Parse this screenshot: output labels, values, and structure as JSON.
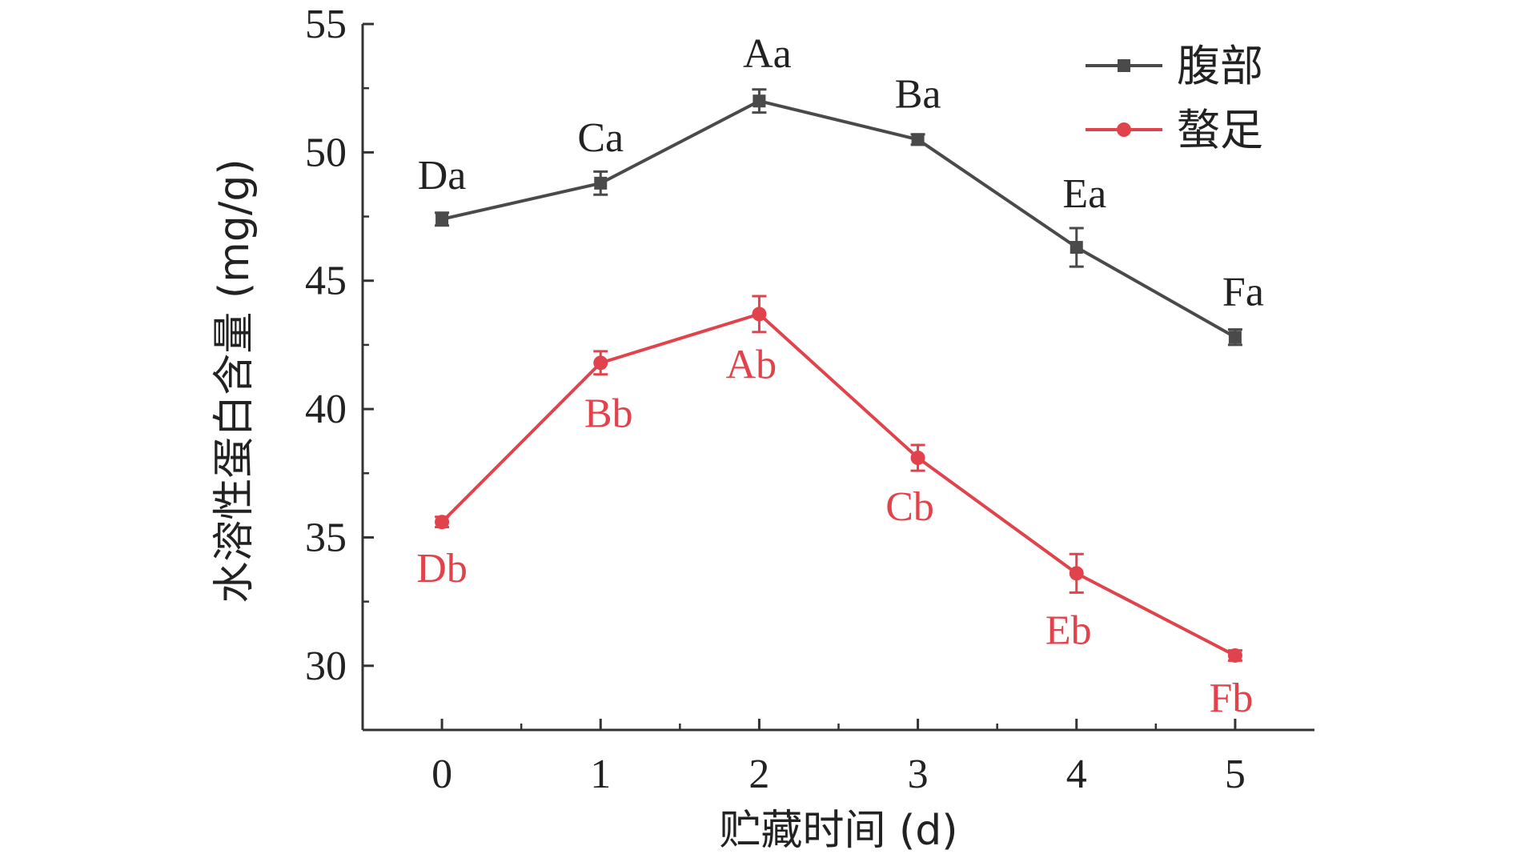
{
  "chart_data": {
    "type": "line",
    "xlabel": "贮藏时间 (d)",
    "ylabel": "水溶性蛋白含量 (mg/g)",
    "x": [
      0,
      1,
      2,
      3,
      4,
      5
    ],
    "xticks": [
      "0",
      "1",
      "2",
      "3",
      "4",
      "5"
    ],
    "ylim": [
      27.5,
      55
    ],
    "yticks": [
      "30",
      "35",
      "40",
      "45",
      "50",
      "55"
    ],
    "xlim": [
      -0.5,
      5.5
    ],
    "grid": false,
    "legend": "top-right",
    "series": [
      {
        "name": "腹部",
        "color": "#4a4a4a",
        "marker": "square",
        "values": [
          47.4,
          48.8,
          52.0,
          50.5,
          46.3,
          42.8
        ],
        "errors": [
          0.25,
          0.45,
          0.45,
          0.2,
          0.75,
          0.3
        ],
        "labels": [
          "Da",
          "Ca",
          "Aa",
          "Ba",
          "Ea",
          "Fa"
        ]
      },
      {
        "name": "螯足",
        "color": "#e0434b",
        "marker": "circle",
        "values": [
          35.6,
          41.8,
          43.7,
          38.1,
          33.6,
          30.4
        ],
        "errors": [
          0.2,
          0.45,
          0.7,
          0.5,
          0.75,
          0.2
        ],
        "labels": [
          "Db",
          "Bb",
          "Ab",
          "Cb",
          "Eb",
          "Fb"
        ]
      }
    ]
  }
}
